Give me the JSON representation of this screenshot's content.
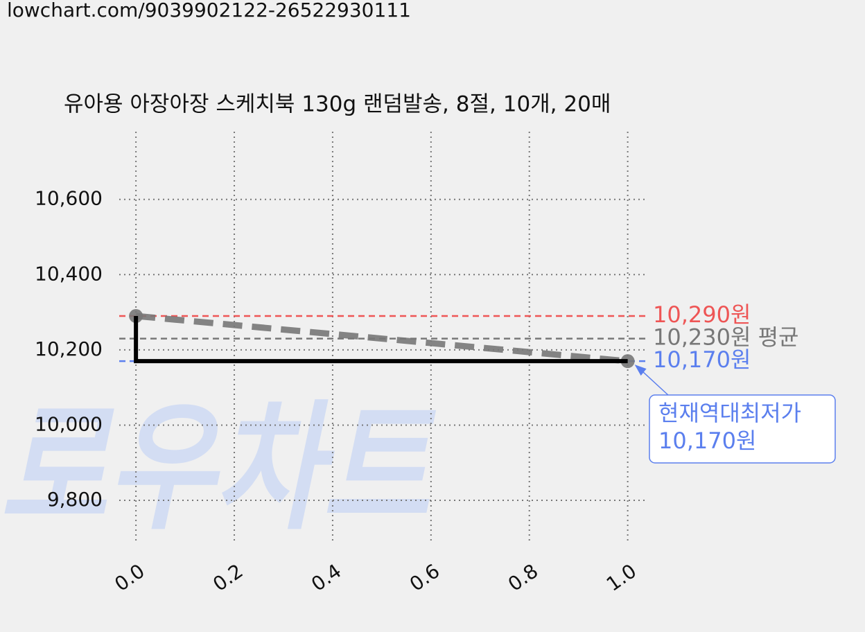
{
  "chart_data": {
    "type": "line",
    "source": "lowchart.com/9039902122-26522930111",
    "watermark": "로우차트",
    "title": "유아용 아장아장 스케치북 130g 랜덤발송, 8절, 10개, 20매",
    "x": [
      0,
      1
    ],
    "series": [
      {
        "color": "#000000",
        "values": [
          10290,
          10170
        ],
        "step": "pre"
      },
      {
        "color": "#777777",
        "values": [
          10290,
          10170
        ],
        "dashed": true,
        "markers": true
      }
    ],
    "hlines": [
      {
        "value": 10290,
        "label": "10,290원",
        "color": "#ee5555"
      },
      {
        "value": 10230,
        "label": "10,230원 평균",
        "color": "#777777"
      },
      {
        "value": 10170,
        "label": "10,170원",
        "color": "#5b7fee"
      }
    ],
    "annotation": {
      "lines": [
        "현재역대최저가",
        "10,170원"
      ],
      "x": 1,
      "y": 10170,
      "color": "#5b7fee"
    },
    "xlim": [
      -0.034,
      1.04
    ],
    "ylim": [
      9684,
      10780
    ],
    "xticks": [
      {
        "value": 0,
        "label": "0.0"
      },
      {
        "value": 0.2,
        "label": "0.2"
      },
      {
        "value": 0.4,
        "label": "0.4"
      },
      {
        "value": 0.6,
        "label": "0.6"
      },
      {
        "value": 0.8,
        "label": "0.8"
      },
      {
        "value": 1,
        "label": "1.0"
      }
    ],
    "yticks": [
      {
        "value": 9800,
        "label": "9,800"
      },
      {
        "value": 10000,
        "label": "10,000"
      },
      {
        "value": 10200,
        "label": "10,200"
      },
      {
        "value": 10400,
        "label": "10,400"
      },
      {
        "value": 10600,
        "label": "10,600"
      }
    ],
    "grid": true
  }
}
